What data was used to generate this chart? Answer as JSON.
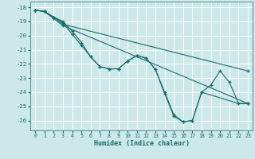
{
  "xlabel": "Humidex (Indice chaleur)",
  "background_color": "#cde8e8",
  "grid_color": "#ffffff",
  "line_color": "#1a6b6b",
  "marker": "+",
  "xlim": [
    -0.5,
    23.5
  ],
  "ylim": [
    -26.7,
    -17.6
  ],
  "xticks": [
    0,
    1,
    2,
    3,
    4,
    5,
    6,
    7,
    8,
    9,
    10,
    11,
    12,
    13,
    14,
    15,
    16,
    17,
    18,
    19,
    20,
    21,
    22,
    23
  ],
  "yticks": [
    -26,
    -25,
    -24,
    -23,
    -22,
    -21,
    -20,
    -19,
    -18
  ],
  "lines": [
    {
      "x": [
        0,
        1,
        2,
        3,
        4,
        5,
        6,
        7,
        8,
        9,
        10,
        11,
        12,
        13,
        14,
        15,
        16,
        17,
        18,
        22,
        23
      ],
      "y": [
        -18.2,
        -18.3,
        -18.7,
        -19.0,
        -19.7,
        -20.5,
        -21.5,
        -22.2,
        -22.35,
        -22.35,
        -21.8,
        -21.4,
        -21.6,
        -22.4,
        -24.0,
        -25.6,
        -26.1,
        -26.0,
        -24.0,
        -24.8,
        -24.8
      ]
    },
    {
      "x": [
        0,
        1,
        2,
        3,
        4,
        5,
        6,
        7,
        8,
        9,
        10,
        11,
        12,
        13,
        14,
        15,
        16,
        17,
        18,
        19,
        20,
        21,
        22,
        23
      ],
      "y": [
        -18.2,
        -18.3,
        -18.7,
        -19.1,
        -19.9,
        -20.7,
        -21.5,
        -22.2,
        -22.35,
        -22.35,
        -21.8,
        -21.4,
        -21.6,
        -22.4,
        -24.1,
        -25.7,
        -26.1,
        -26.0,
        -24.0,
        -23.5,
        -22.5,
        -23.3,
        -24.8,
        -24.8
      ]
    },
    {
      "x": [
        0,
        1,
        2,
        3,
        23
      ],
      "y": [
        -18.2,
        -18.3,
        -18.7,
        -19.2,
        -22.5
      ]
    },
    {
      "x": [
        0,
        1,
        2,
        3,
        23
      ],
      "y": [
        -18.2,
        -18.3,
        -18.8,
        -19.3,
        -24.8
      ]
    }
  ]
}
